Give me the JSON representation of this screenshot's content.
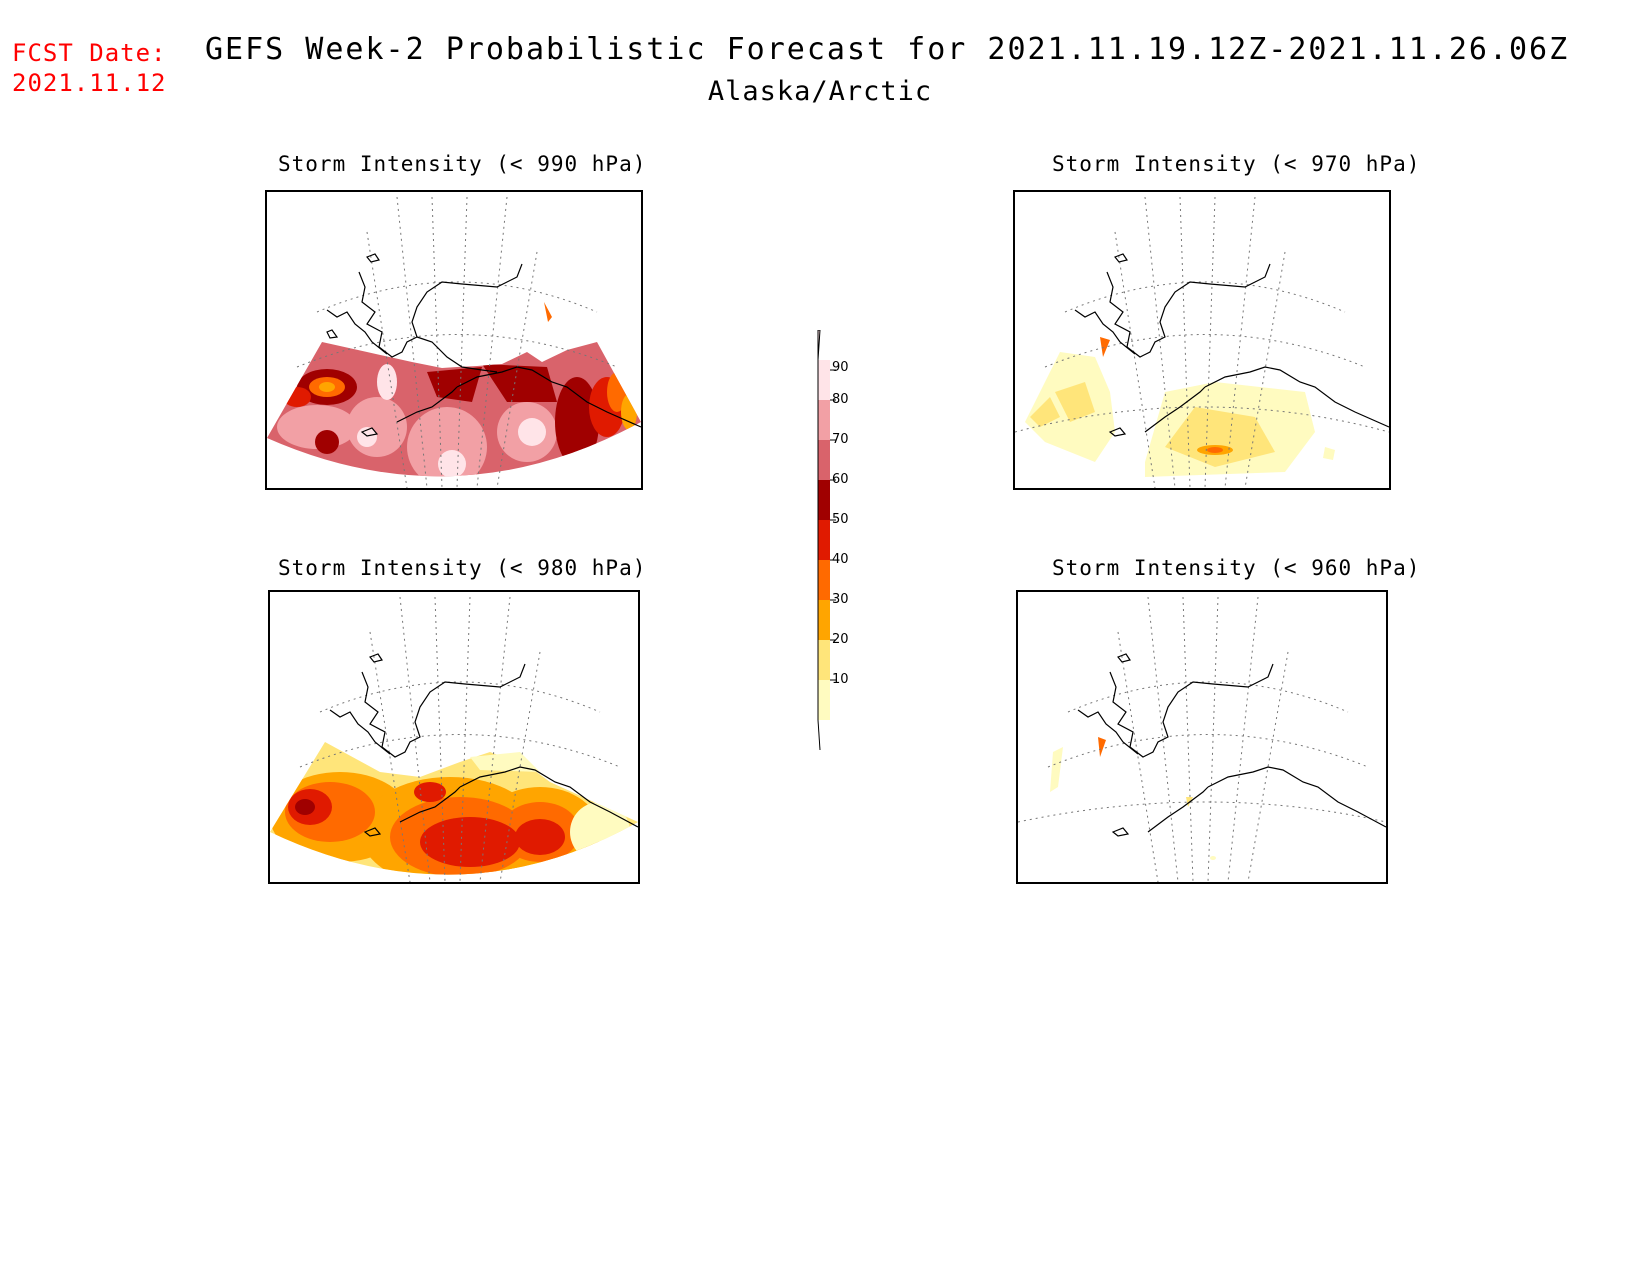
{
  "header": {
    "fcst_label": "FCST Date:",
    "fcst_date": "2021.11.12",
    "title": "GEFS Week-2 Probabilistic Forecast for 2021.11.19.12Z-2021.11.26.06Z",
    "region": "Alaska/Arctic"
  },
  "panels": [
    {
      "id": "p990",
      "title": "Storm Intensity (< 990 hPa)"
    },
    {
      "id": "p970",
      "title": "Storm Intensity (< 970 hPa)"
    },
    {
      "id": "p980",
      "title": "Storm Intensity (< 980 hPa)"
    },
    {
      "id": "p960",
      "title": "Storm Intensity (< 960 hPa)"
    }
  ],
  "legend": {
    "labels": [
      "90",
      "80",
      "70",
      "60",
      "50",
      "40",
      "30",
      "20",
      "10"
    ],
    "colors": {
      "10": "#fffbc0",
      "20": "#ffe57a",
      "30": "#ffa500",
      "40": "#ff6a00",
      "50": "#e01a00",
      "60": "#a00000",
      "70": "#d9636b",
      "80": "#f2a0a5",
      "90": "#ffe4e8"
    }
  }
}
